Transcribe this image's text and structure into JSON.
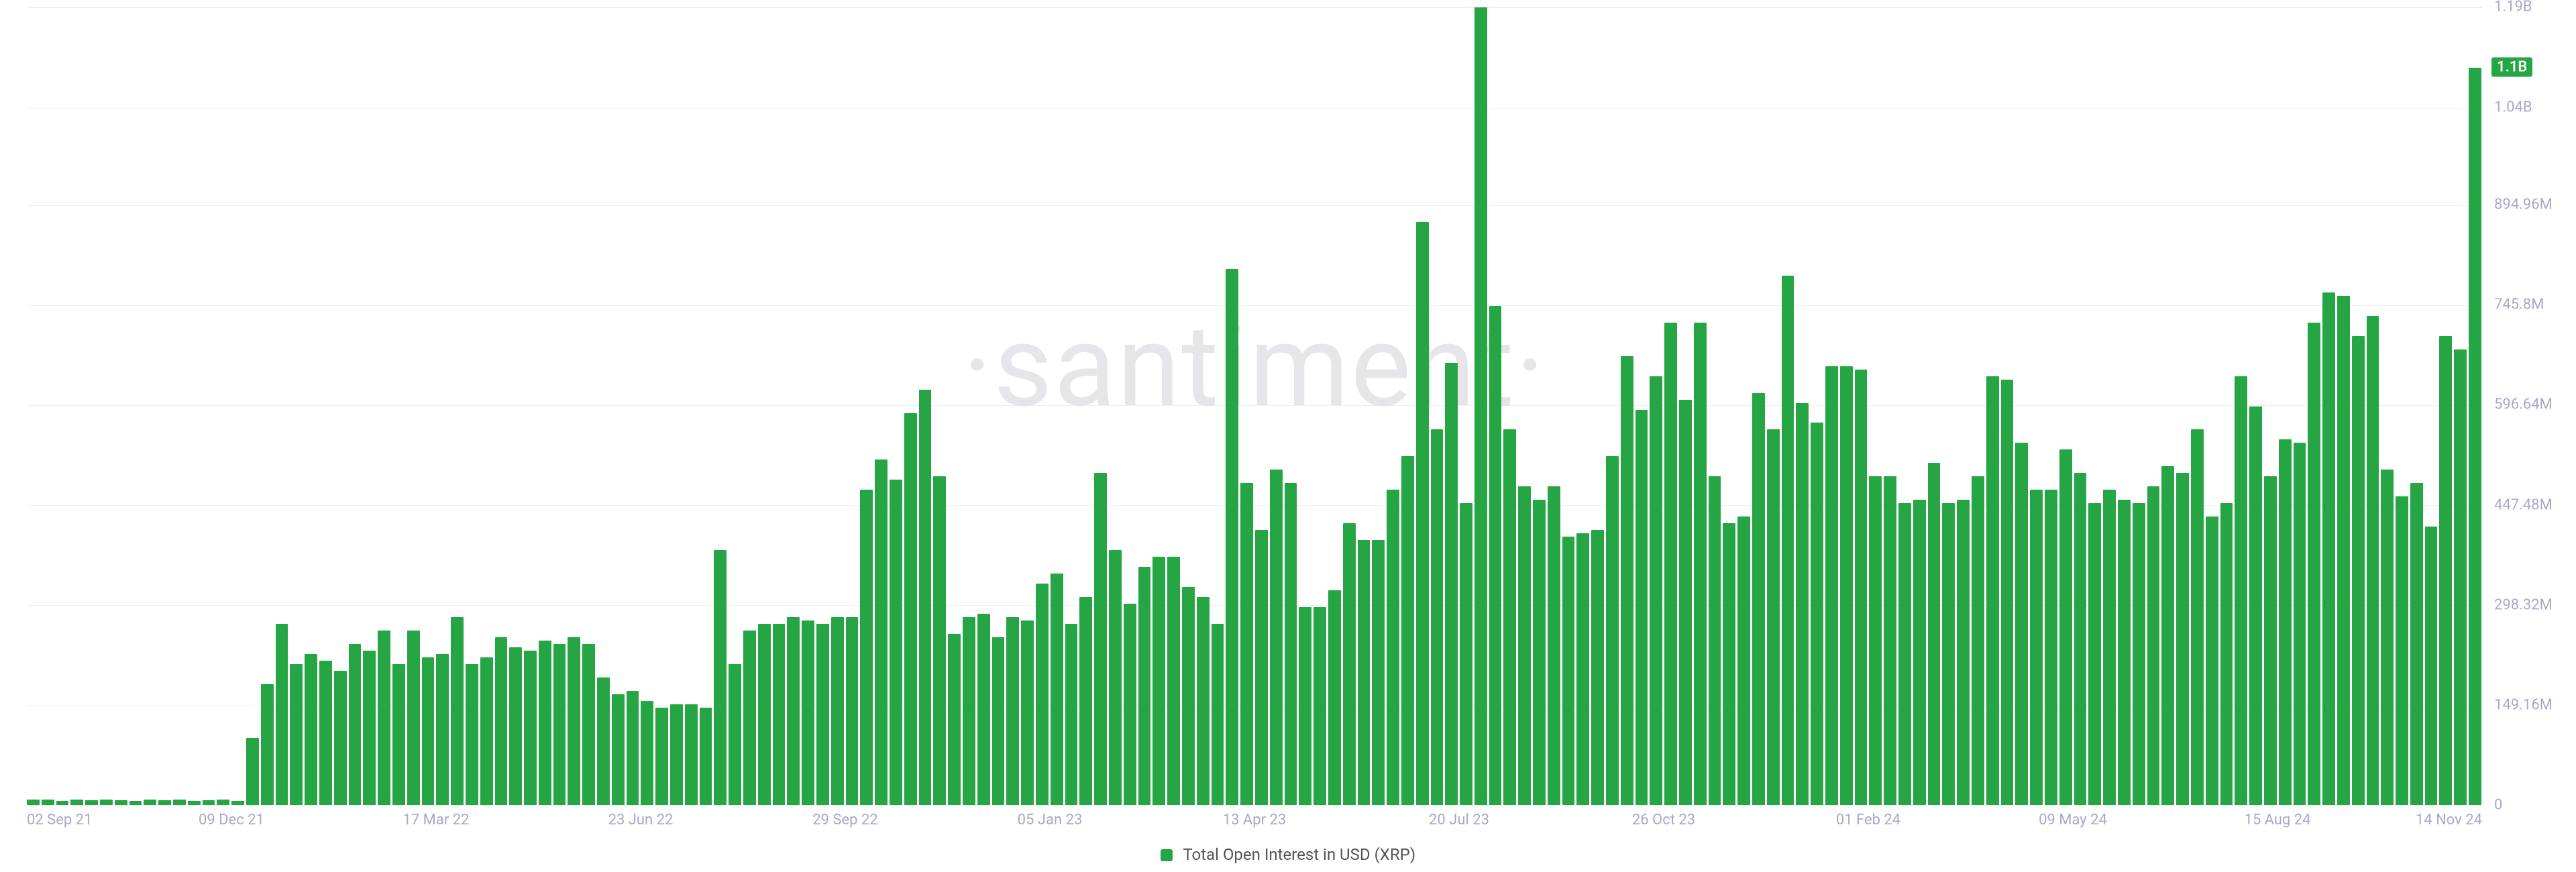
{
  "chart": {
    "type": "bar",
    "watermark": "·santiment·",
    "legend_label": "Total Open Interest in USD (XRP)",
    "bar_color": "#26a544",
    "background_color": "#ffffff",
    "grid_color": "#f0f0f0",
    "axis_label_color": "#a8a8c8",
    "watermark_color": "#e5e5ea",
    "badge_bg": "#26a544",
    "badge_fg": "#ffffff",
    "label_fontsize": 22,
    "legend_fontsize": 24,
    "watermark_fontsize": 170,
    "ylim": [
      0,
      1190000000
    ],
    "y_ticks": [
      {
        "v": 0,
        "label": "0"
      },
      {
        "v": 149160000,
        "label": "149.16M"
      },
      {
        "v": 298320000,
        "label": "298.32M"
      },
      {
        "v": 447480000,
        "label": "447.48M"
      },
      {
        "v": 596640000,
        "label": "596.64M"
      },
      {
        "v": 745800000,
        "label": "745.8M"
      },
      {
        "v": 894960000,
        "label": "894.96M"
      },
      {
        "v": 1040000000,
        "label": "1.04B"
      },
      {
        "v": 1190000000,
        "label": "1.19B"
      }
    ],
    "current_value_badge": {
      "v": 1100000000,
      "label": "1.1B"
    },
    "x_tick_labels": [
      "02 Sep 21",
      "09 Dec 21",
      "17 Mar 22",
      "23 Jun 22",
      "29 Sep 22",
      "05 Jan 23",
      "13 Apr 23",
      "20 Jul 23",
      "26 Oct 23",
      "01 Feb 24",
      "09 May 24",
      "15 Aug 24",
      "14 Nov 24"
    ],
    "values_millions": [
      8,
      8,
      6,
      8,
      7,
      8,
      7,
      6,
      8,
      7,
      8,
      6,
      7,
      8,
      6,
      100,
      180,
      270,
      210,
      225,
      215,
      200,
      240,
      230,
      260,
      210,
      260,
      220,
      225,
      280,
      210,
      220,
      250,
      235,
      230,
      245,
      240,
      250,
      240,
      190,
      165,
      170,
      155,
      145,
      150,
      150,
      145,
      380,
      210,
      260,
      270,
      270,
      280,
      275,
      270,
      280,
      280,
      470,
      515,
      485,
      585,
      620,
      490,
      255,
      280,
      285,
      250,
      280,
      275,
      330,
      345,
      270,
      310,
      495,
      380,
      300,
      355,
      370,
      370,
      325,
      310,
      270,
      800,
      480,
      410,
      500,
      480,
      295,
      295,
      320,
      420,
      395,
      395,
      470,
      520,
      870,
      560,
      660,
      450,
      1190,
      745,
      560,
      475,
      455,
      475,
      400,
      405,
      410,
      520,
      670,
      590,
      640,
      720,
      605,
      720,
      490,
      420,
      430,
      615,
      560,
      790,
      600,
      570,
      655,
      655,
      650,
      490,
      490,
      450,
      455,
      510,
      450,
      455,
      490,
      640,
      635,
      540,
      470,
      470,
      530,
      495,
      450,
      470,
      455,
      450,
      475,
      505,
      495,
      560,
      430,
      450,
      640,
      595,
      490,
      545,
      540,
      720,
      765,
      760,
      700,
      730,
      500,
      460,
      480,
      415,
      700,
      680,
      1100
    ]
  }
}
